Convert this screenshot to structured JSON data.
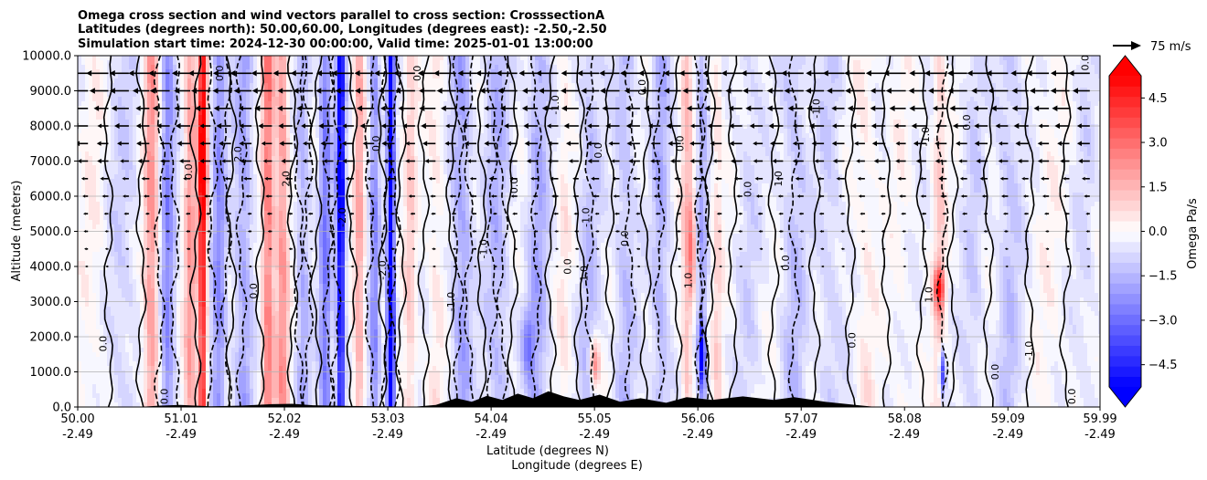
{
  "chart_data": {
    "type": "heatmap",
    "title_lines": [
      "Omega cross section and wind vectors parallel to cross section: CrosssectionA",
      "Latitudes (degrees north): 50.00,60.00, Longitudes (degrees east): -2.50,-2.50",
      "Simulation start time: 2024-12-30 00:00:00, Valid time: 2025-01-01 13:00:00"
    ],
    "xlabel_lines": [
      "Latitude (degrees N)",
      "Longitude (degrees E)"
    ],
    "ylabel": "Altitude (meters)",
    "x_range": [
      50.0,
      59.99
    ],
    "y_range": [
      0,
      10000
    ],
    "x_ticks": [
      {
        "lat": "50.00",
        "lon": "-2.49",
        "value": 50.0
      },
      {
        "lat": "51.01",
        "lon": "-2.49",
        "value": 51.01
      },
      {
        "lat": "52.02",
        "lon": "-2.49",
        "value": 52.02
      },
      {
        "lat": "53.03",
        "lon": "-2.49",
        "value": 53.03
      },
      {
        "lat": "54.04",
        "lon": "-2.49",
        "value": 54.04
      },
      {
        "lat": "55.05",
        "lon": "-2.49",
        "value": 55.05
      },
      {
        "lat": "56.06",
        "lon": "-2.49",
        "value": 56.06
      },
      {
        "lat": "57.07",
        "lon": "-2.49",
        "value": 57.07
      },
      {
        "lat": "58.08",
        "lon": "-2.49",
        "value": 58.08
      },
      {
        "lat": "59.09",
        "lon": "-2.49",
        "value": 59.09
      },
      {
        "lat": "59.99",
        "lon": "-2.49",
        "value": 59.99
      }
    ],
    "y_ticks": [
      {
        "label": "0.0",
        "value": 0
      },
      {
        "label": "1000.0",
        "value": 1000
      },
      {
        "label": "2000.0",
        "value": 2000
      },
      {
        "label": "3000.0",
        "value": 3000
      },
      {
        "label": "4000.0",
        "value": 4000
      },
      {
        "label": "5000.0",
        "value": 5000
      },
      {
        "label": "6000.0",
        "value": 6000
      },
      {
        "label": "7000.0",
        "value": 7000
      },
      {
        "label": "8000.0",
        "value": 8000
      },
      {
        "label": "9000.0",
        "value": 9000
      },
      {
        "label": "10000.0",
        "value": 10000
      }
    ],
    "grid": true,
    "colorbar": {
      "label": "Omega Pa/s",
      "range": [
        -5.25,
        5.25
      ],
      "extend": "both",
      "levels": [
        -5.25,
        -4.9,
        -4.55,
        -4.2,
        -3.85,
        -3.5,
        -3.15,
        -2.8,
        -2.45,
        -2.1,
        -1.75,
        -1.4,
        -1.05,
        -0.7,
        -0.35,
        0.0,
        0.35,
        0.7,
        1.05,
        1.4,
        1.75,
        2.1,
        2.45,
        2.8,
        3.15,
        3.5,
        3.85,
        4.2,
        4.55,
        4.9,
        5.25
      ],
      "ticks": [
        {
          "label": "4.5",
          "value": 4.5
        },
        {
          "label": "3.0",
          "value": 3.0
        },
        {
          "label": "1.5",
          "value": 1.5
        },
        {
          "label": "0.0",
          "value": 0.0
        },
        {
          "label": "−1.5",
          "value": -1.5
        },
        {
          "label": "−3.0",
          "value": -3.0
        },
        {
          "label": "−4.5",
          "value": -4.5
        }
      ],
      "low_color": "#0000ff",
      "mid_color": "#ffffff",
      "high_color": "#ff0000"
    },
    "vector_key": {
      "label": "75 m/s",
      "speed": 75
    },
    "omega_bands": [
      {
        "lat": 50.15,
        "omega": 0.4,
        "width": 0.12
      },
      {
        "lat": 50.45,
        "omega": -0.6,
        "width": 0.15
      },
      {
        "lat": 50.72,
        "omega": 2.4,
        "width": 0.07
      },
      {
        "lat": 50.88,
        "omega": -2.1,
        "width": 0.07
      },
      {
        "lat": 51.1,
        "omega": 2.2,
        "width": 0.06
      },
      {
        "lat": 51.22,
        "omega": 4.9,
        "width": 0.04
      },
      {
        "lat": 51.38,
        "omega": -2.0,
        "width": 0.07
      },
      {
        "lat": 51.62,
        "omega": -1.6,
        "width": 0.09
      },
      {
        "lat": 51.86,
        "omega": 3.0,
        "width": 0.06
      },
      {
        "lat": 52.0,
        "omega": 2.4,
        "width": 0.06
      },
      {
        "lat": 52.2,
        "omega": -1.4,
        "width": 0.07
      },
      {
        "lat": 52.42,
        "omega": -2.4,
        "width": 0.06
      },
      {
        "lat": 52.57,
        "omega": -4.9,
        "width": 0.04
      },
      {
        "lat": 52.75,
        "omega": 2.0,
        "width": 0.05
      },
      {
        "lat": 52.9,
        "omega": -2.0,
        "width": 0.05
      },
      {
        "lat": 53.06,
        "omega": -5.0,
        "width": 0.035
      },
      {
        "lat": 53.25,
        "omega": 1.2,
        "width": 0.06
      },
      {
        "lat": 53.5,
        "omega": 0.7,
        "width": 0.08
      },
      {
        "lat": 53.75,
        "omega": -1.6,
        "width": 0.1
      },
      {
        "lat": 54.1,
        "omega": -1.2,
        "width": 0.12
      },
      {
        "lat": 54.5,
        "omega": -1.4,
        "width": 0.1
      },
      {
        "lat": 54.75,
        "omega": 0.6,
        "width": 0.06
      },
      {
        "lat": 55.0,
        "omega": -1.0,
        "width": 0.1
      },
      {
        "lat": 55.35,
        "omega": -1.1,
        "width": 0.1
      },
      {
        "lat": 55.7,
        "omega": -1.3,
        "width": 0.09
      },
      {
        "lat": 55.95,
        "omega": 1.5,
        "width": 0.05
      },
      {
        "lat": 56.1,
        "omega": -1.4,
        "width": 0.05
      },
      {
        "lat": 56.25,
        "omega": 1.0,
        "width": 0.05
      },
      {
        "lat": 56.55,
        "omega": -0.5,
        "width": 0.12
      },
      {
        "lat": 57.0,
        "omega": -1.0,
        "width": 0.12
      },
      {
        "lat": 57.35,
        "omega": -0.7,
        "width": 0.12
      },
      {
        "lat": 57.7,
        "omega": 0.6,
        "width": 0.1
      },
      {
        "lat": 58.05,
        "omega": 0.3,
        "width": 0.1
      },
      {
        "lat": 58.42,
        "omega": 1.2,
        "width": 0.06
      },
      {
        "lat": 58.75,
        "omega": -0.6,
        "width": 0.1
      },
      {
        "lat": 59.1,
        "omega": -0.9,
        "width": 0.12
      },
      {
        "lat": 59.5,
        "omega": 0.3,
        "width": 0.15
      },
      {
        "lat": 59.85,
        "omega": -0.4,
        "width": 0.1
      }
    ],
    "omega_blobs": [
      {
        "lat": 51.22,
        "alt": 7000,
        "omega": 2.0,
        "dlat": 0.05,
        "dalt": 2000
      },
      {
        "lat": 52.57,
        "alt": 6000,
        "omega": -1.0,
        "dlat": 0.05,
        "dalt": 2500
      },
      {
        "lat": 53.06,
        "alt": 2000,
        "omega": -2.5,
        "dlat": 0.04,
        "dalt": 1500
      },
      {
        "lat": 56.1,
        "alt": 1500,
        "omega": -4.5,
        "dlat": 0.03,
        "dalt": 900
      },
      {
        "lat": 55.05,
        "alt": 1200,
        "omega": 3.0,
        "dlat": 0.05,
        "dalt": 700
      },
      {
        "lat": 58.42,
        "alt": 3400,
        "omega": 4.0,
        "dlat": 0.05,
        "dalt": 600
      },
      {
        "lat": 58.45,
        "alt": 1000,
        "omega": -4.2,
        "dlat": 0.03,
        "dalt": 700
      },
      {
        "lat": 56.0,
        "alt": 4500,
        "omega": 2.5,
        "dlat": 0.04,
        "dalt": 1800
      },
      {
        "lat": 54.4,
        "alt": 1800,
        "omega": -2.0,
        "dlat": 0.06,
        "dalt": 1000
      }
    ],
    "zero_contour_lats": [
      50.3,
      50.62,
      51.15,
      51.5,
      51.78,
      52.1,
      52.33,
      52.68,
      52.98,
      53.16,
      53.38,
      53.65,
      53.95,
      54.25,
      54.62,
      54.9,
      55.2,
      55.55,
      55.85,
      56.18,
      56.4,
      56.8,
      57.2,
      57.55,
      57.9,
      58.25,
      58.55,
      58.9,
      59.3,
      59.65
    ],
    "dashed_contour_lats": [
      50.8,
      50.95,
      51.32,
      51.45,
      51.6,
      52.16,
      52.25,
      52.45,
      52.52,
      52.85,
      53.02,
      53.1,
      53.72,
      53.82,
      54.05,
      54.15,
      54.48,
      55.0,
      55.4,
      55.68,
      56.08,
      56.12,
      57.0,
      58.45
    ],
    "contour_labels": [
      {
        "text": "0.0",
        "lat": 50.28,
        "alt": 1800
      },
      {
        "text": "0.0",
        "lat": 50.88,
        "alt": 300
      },
      {
        "text": "0.0",
        "lat": 51.12,
        "alt": 6700
      },
      {
        "text": "0.0",
        "lat": 51.42,
        "alt": 9500
      },
      {
        "text": "2.0",
        "lat": 51.6,
        "alt": 7200
      },
      {
        "text": "2.0",
        "lat": 52.07,
        "alt": 6500
      },
      {
        "text": "0.0",
        "lat": 51.75,
        "alt": 3300
      },
      {
        "text": "-2.0",
        "lat": 52.62,
        "alt": 5400
      },
      {
        "text": "0.0",
        "lat": 52.95,
        "alt": 7500
      },
      {
        "text": "-2.0",
        "lat": 53.01,
        "alt": 3900
      },
      {
        "text": "0.0",
        "lat": 53.35,
        "alt": 9500
      },
      {
        "text": "-1.0",
        "lat": 53.68,
        "alt": 3000
      },
      {
        "text": "-1.0",
        "lat": 54.0,
        "alt": 4500
      },
      {
        "text": "0.0",
        "lat": 54.3,
        "alt": 6300
      },
      {
        "text": "-1.0",
        "lat": 54.7,
        "alt": 8600
      },
      {
        "text": "0.0",
        "lat": 54.82,
        "alt": 4000
      },
      {
        "text": "1.0",
        "lat": 54.98,
        "alt": 3800
      },
      {
        "text": "-1.0",
        "lat": 55.0,
        "alt": 5400
      },
      {
        "text": "0.0",
        "lat": 55.55,
        "alt": 9100
      },
      {
        "text": "0.0",
        "lat": 55.38,
        "alt": 4800
      },
      {
        "text": "0.0",
        "lat": 55.12,
        "alt": 7300
      },
      {
        "text": "1.0",
        "lat": 56.0,
        "alt": 3600
      },
      {
        "text": "0.0",
        "lat": 55.92,
        "alt": 7500
      },
      {
        "text": "0.0",
        "lat": 56.58,
        "alt": 6200
      },
      {
        "text": "1.0",
        "lat": 56.88,
        "alt": 6500
      },
      {
        "text": "-1.0",
        "lat": 57.25,
        "alt": 8500
      },
      {
        "text": "0.0",
        "lat": 56.95,
        "alt": 4100
      },
      {
        "text": "0.0",
        "lat": 57.6,
        "alt": 1900
      },
      {
        "text": "-1.0",
        "lat": 58.32,
        "alt": 7700
      },
      {
        "text": "1.0",
        "lat": 58.35,
        "alt": 3200
      },
      {
        "text": "0.0",
        "lat": 58.72,
        "alt": 8100
      },
      {
        "text": "0.0",
        "lat": 59.0,
        "alt": 1000
      },
      {
        "text": "-1.0",
        "lat": 59.33,
        "alt": 1600
      },
      {
        "text": "0.0",
        "lat": 59.75,
        "alt": 300
      },
      {
        "text": "0.0",
        "lat": 59.88,
        "alt": 9800
      }
    ],
    "wind_rows": [
      {
        "alt": 9500,
        "u": -7
      },
      {
        "alt": 9000,
        "u": -6
      },
      {
        "alt": 8500,
        "u": -5
      },
      {
        "alt": 8000,
        "u": -4
      },
      {
        "alt": 7500,
        "u": -3.5
      },
      {
        "alt": 7000,
        "u": -3
      },
      {
        "alt": 6500,
        "u": -2
      },
      {
        "alt": 6000,
        "u": -1.5
      },
      {
        "alt": 5500,
        "u": -1
      },
      {
        "alt": 5000,
        "u": -0.8
      },
      {
        "alt": 4500,
        "u": -0.6
      },
      {
        "alt": 4000,
        "u": -0.4
      },
      {
        "alt": 3500,
        "u": -0.3
      },
      {
        "alt": 3000,
        "u": -0.25
      },
      {
        "alt": 2500,
        "u": -0.2
      },
      {
        "alt": 2000,
        "u": -0.2
      },
      {
        "alt": 1500,
        "u": -0.15
      },
      {
        "alt": 1000,
        "u": -0.15
      },
      {
        "alt": 500,
        "u": -0.1
      }
    ],
    "wind_lat_count": 50,
    "terrain": [
      {
        "lat": 50.0,
        "alt": 0
      },
      {
        "lat": 50.6,
        "alt": 0
      },
      {
        "lat": 50.8,
        "alt": 40
      },
      {
        "lat": 51.0,
        "alt": 60
      },
      {
        "lat": 51.3,
        "alt": 20
      },
      {
        "lat": 51.6,
        "alt": 40
      },
      {
        "lat": 51.9,
        "alt": 80
      },
      {
        "lat": 52.1,
        "alt": 90
      },
      {
        "lat": 52.3,
        "alt": 50
      },
      {
        "lat": 52.6,
        "alt": 30
      },
      {
        "lat": 53.0,
        "alt": 20
      },
      {
        "lat": 53.3,
        "alt": 10
      },
      {
        "lat": 53.5,
        "alt": 60
      },
      {
        "lat": 53.7,
        "alt": 250
      },
      {
        "lat": 53.85,
        "alt": 150
      },
      {
        "lat": 54.0,
        "alt": 320
      },
      {
        "lat": 54.15,
        "alt": 200
      },
      {
        "lat": 54.3,
        "alt": 380
      },
      {
        "lat": 54.45,
        "alt": 250
      },
      {
        "lat": 54.6,
        "alt": 450
      },
      {
        "lat": 54.75,
        "alt": 300
      },
      {
        "lat": 54.9,
        "alt": 200
      },
      {
        "lat": 55.1,
        "alt": 350
      },
      {
        "lat": 55.3,
        "alt": 150
      },
      {
        "lat": 55.5,
        "alt": 250
      },
      {
        "lat": 55.75,
        "alt": 120
      },
      {
        "lat": 55.95,
        "alt": 280
      },
      {
        "lat": 56.2,
        "alt": 200
      },
      {
        "lat": 56.5,
        "alt": 300
      },
      {
        "lat": 56.8,
        "alt": 200
      },
      {
        "lat": 57.0,
        "alt": 280
      },
      {
        "lat": 57.3,
        "alt": 150
      },
      {
        "lat": 57.6,
        "alt": 60
      },
      {
        "lat": 57.8,
        "alt": 0
      },
      {
        "lat": 59.99,
        "alt": 0
      }
    ]
  }
}
